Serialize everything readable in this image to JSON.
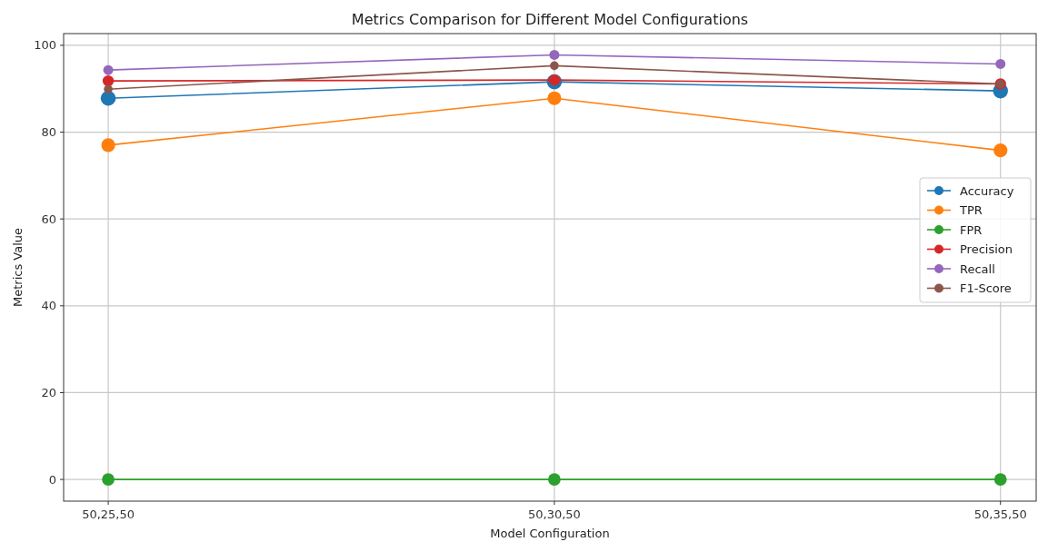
{
  "chart_data": {
    "type": "line",
    "title": "Metrics Comparison for Different Model Configurations",
    "xlabel": "Model Configuration",
    "ylabel": "Metrics Value",
    "categories": [
      "50,25,50",
      "50,30,50",
      "50,35,50"
    ],
    "series": [
      {
        "name": "Accuracy",
        "color": "#1f77b4",
        "values": [
          87.8,
          91.6,
          89.5
        ]
      },
      {
        "name": "TPR",
        "color": "#ff7f0e",
        "values": [
          77.0,
          87.8,
          75.8
        ]
      },
      {
        "name": "FPR",
        "color": "#2ca02c",
        "values": [
          0,
          0,
          0
        ]
      },
      {
        "name": "Precision",
        "color": "#d62728",
        "values": [
          91.8,
          92.0,
          91.1
        ]
      },
      {
        "name": "Recall",
        "color": "#9467bd",
        "values": [
          94.3,
          97.8,
          95.7
        ]
      },
      {
        "name": "F1-Score",
        "color": "#8c564b",
        "values": [
          89.9,
          95.3,
          91.1
        ]
      }
    ],
    "ylim": [
      -5,
      102.7
    ],
    "yticks": [
      0,
      20,
      40,
      60,
      80,
      100
    ],
    "grid": true,
    "legend": "right",
    "marker": "circle",
    "line_style": "solid"
  }
}
